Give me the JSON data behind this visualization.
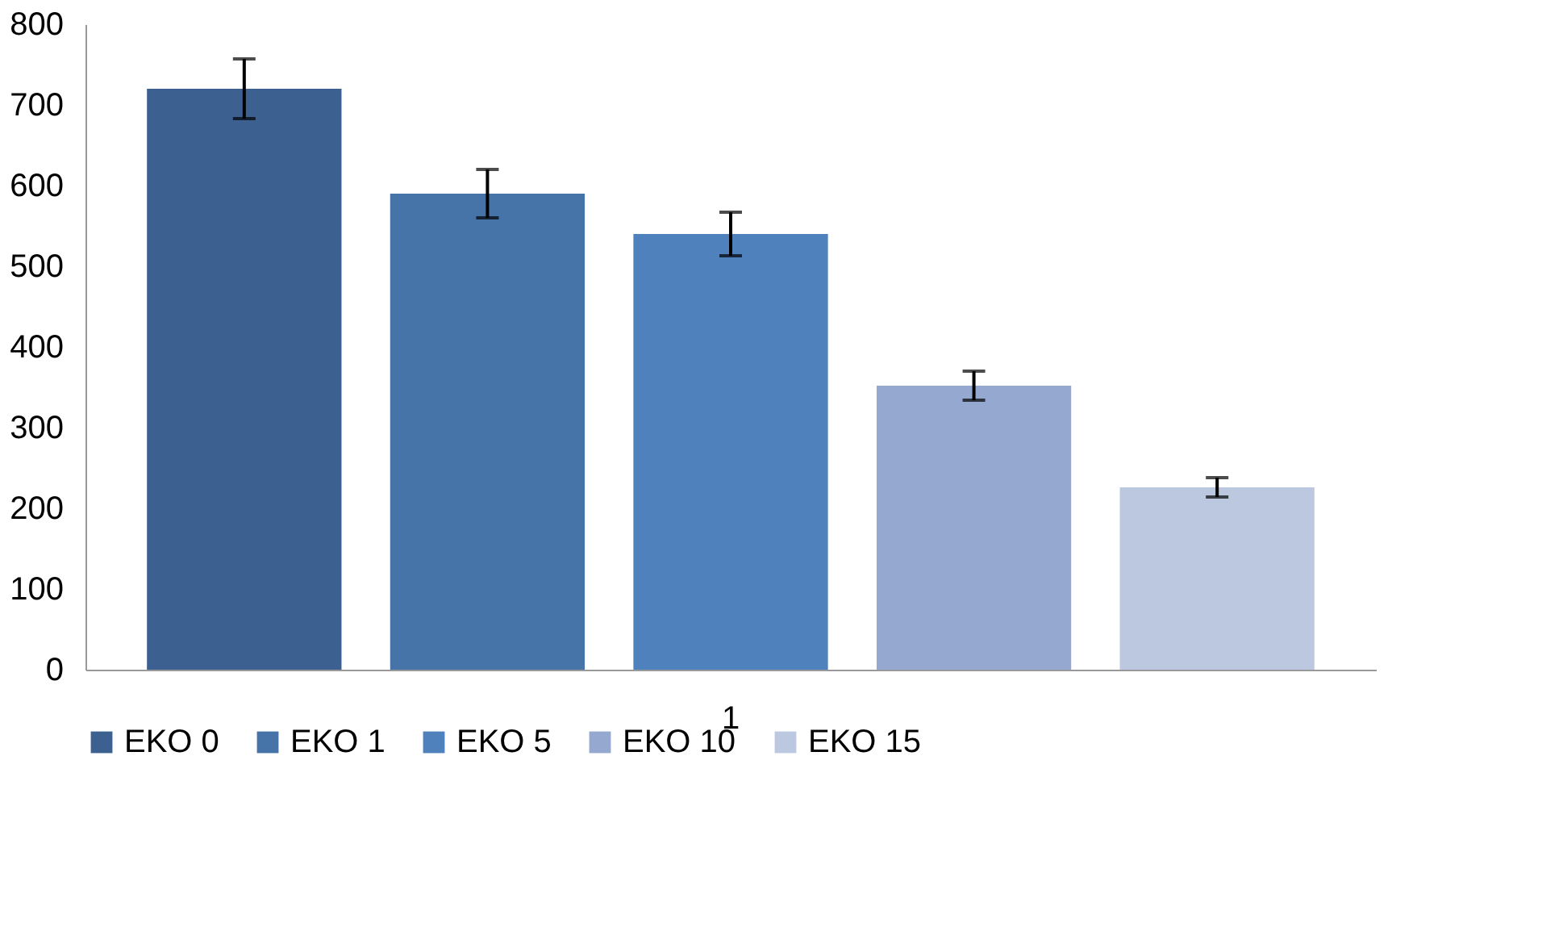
{
  "chart_data": {
    "type": "bar",
    "categories": [
      "1"
    ],
    "series": [
      {
        "name": "EKO 0",
        "color": "#3c6090",
        "values": [
          720
        ],
        "errors": [
          37
        ]
      },
      {
        "name": "EKO 1",
        "color": "#4673a8",
        "values": [
          590
        ],
        "errors": [
          30
        ]
      },
      {
        "name": "EKO 5",
        "color": "#4f81bd",
        "values": [
          540
        ],
        "errors": [
          27
        ]
      },
      {
        "name": "EKO 10",
        "color": "#95a9d0",
        "values": [
          352
        ],
        "errors": [
          18
        ]
      },
      {
        "name": "EKO 15",
        "color": "#bbc8e0",
        "values": [
          226
        ],
        "errors": [
          12
        ]
      }
    ],
    "ylim": [
      0,
      800
    ],
    "yticks": [
      0,
      100,
      200,
      300,
      400,
      500,
      600,
      700,
      800
    ],
    "grid": false,
    "legend": "bottom"
  }
}
